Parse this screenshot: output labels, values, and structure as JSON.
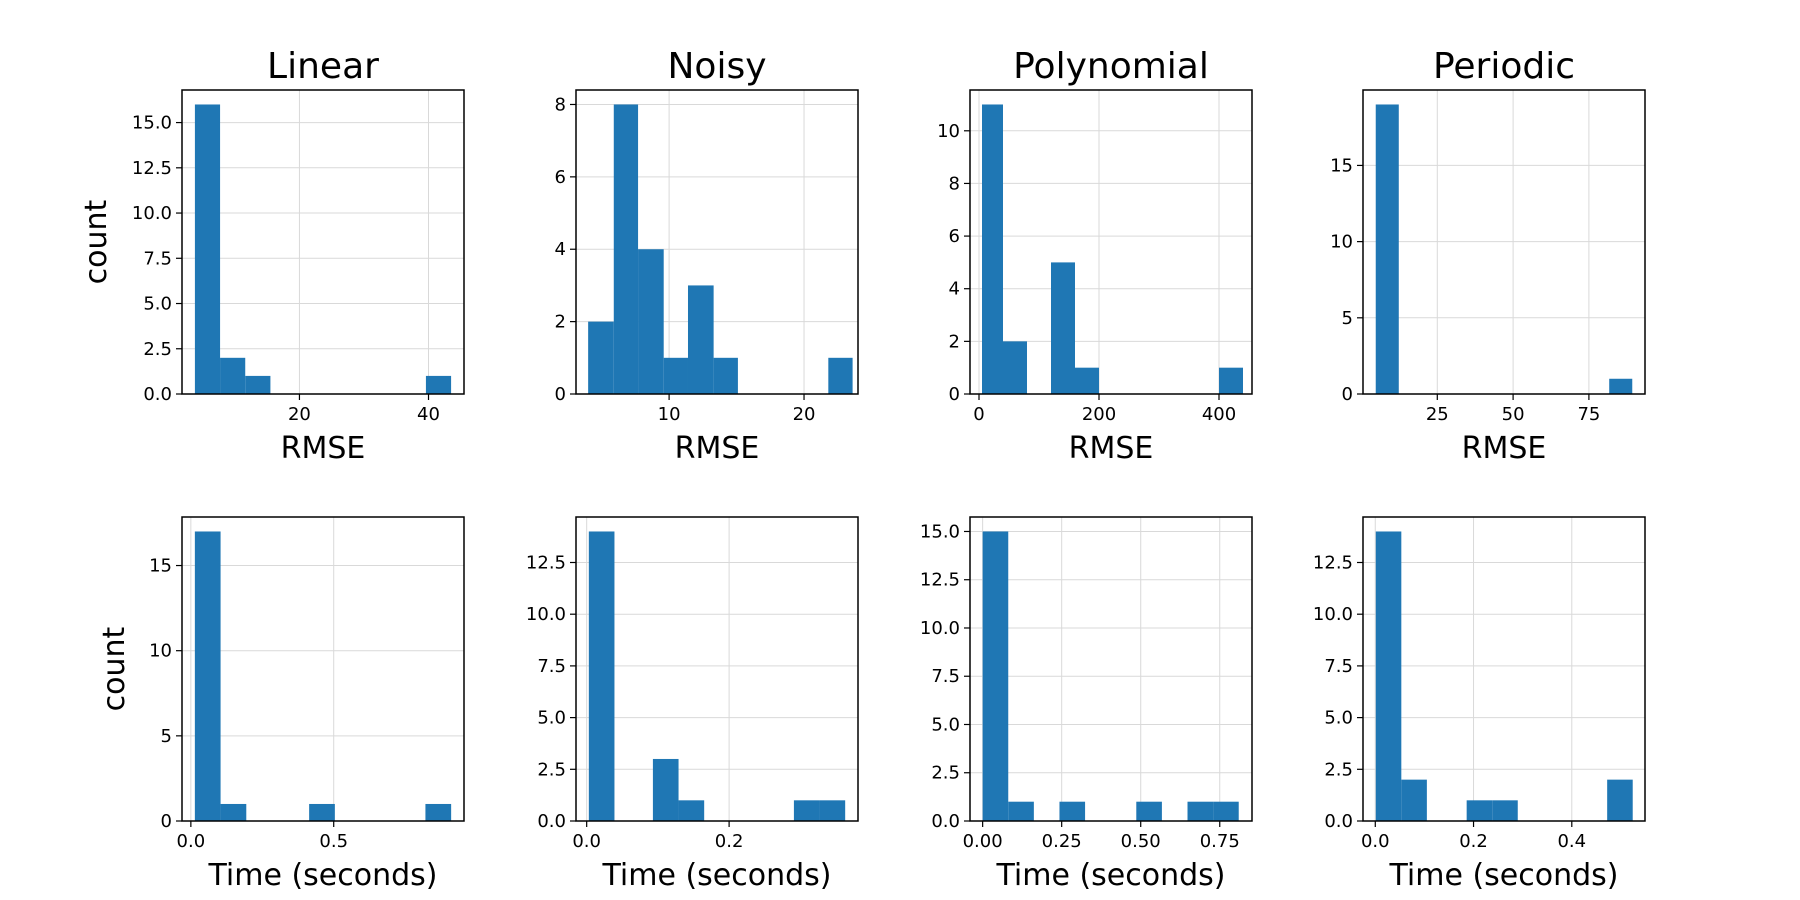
{
  "figure": {
    "ylabel": "count"
  },
  "chart_data": [
    {
      "type": "bar",
      "subtype": "histogram",
      "title": "Linear",
      "xlabel": "RMSE",
      "ylabel": "count",
      "xlim": [
        1.8,
        45.5
      ],
      "ylim": [
        0,
        16.8
      ],
      "grid": true,
      "xticks": [
        {
          "v": 20,
          "label": "20"
        },
        {
          "v": 40,
          "label": "40"
        }
      ],
      "yticks": [
        {
          "v": 0,
          "label": "0.0"
        },
        {
          "v": 2.5,
          "label": "2.5"
        },
        {
          "v": 5,
          "label": "5.0"
        },
        {
          "v": 7.5,
          "label": "7.5"
        },
        {
          "v": 10,
          "label": "10.0"
        },
        {
          "v": 12.5,
          "label": "12.5"
        },
        {
          "v": 15,
          "label": "15.0"
        }
      ],
      "bins": [
        {
          "x0": 3.8,
          "x1": 7.7,
          "count": 16
        },
        {
          "x0": 7.7,
          "x1": 11.6,
          "count": 2
        },
        {
          "x0": 11.6,
          "x1": 15.5,
          "count": 1
        },
        {
          "x0": 39.6,
          "x1": 43.5,
          "count": 1
        }
      ]
    },
    {
      "type": "bar",
      "subtype": "histogram",
      "title": "Noisy",
      "xlabel": "RMSE",
      "ylabel": "",
      "xlim": [
        3.1,
        24.0
      ],
      "ylim": [
        0,
        8.4
      ],
      "grid": true,
      "xticks": [
        {
          "v": 10,
          "label": "10"
        },
        {
          "v": 20,
          "label": "20"
        }
      ],
      "yticks": [
        {
          "v": 0,
          "label": "0"
        },
        {
          "v": 2,
          "label": "2"
        },
        {
          "v": 4,
          "label": "4"
        },
        {
          "v": 6,
          "label": "6"
        },
        {
          "v": 8,
          "label": "8"
        }
      ],
      "bins": [
        {
          "x0": 4.0,
          "x1": 5.9,
          "count": 2
        },
        {
          "x0": 5.9,
          "x1": 7.7,
          "count": 8
        },
        {
          "x0": 7.7,
          "x1": 9.6,
          "count": 4
        },
        {
          "x0": 9.6,
          "x1": 11.4,
          "count": 1
        },
        {
          "x0": 11.4,
          "x1": 13.3,
          "count": 3
        },
        {
          "x0": 13.3,
          "x1": 15.1,
          "count": 1
        },
        {
          "x0": 21.8,
          "x1": 23.6,
          "count": 1
        }
      ]
    },
    {
      "type": "bar",
      "subtype": "histogram",
      "title": "Polynomial",
      "xlabel": "RMSE",
      "ylabel": "",
      "xlim": [
        -15,
        455
      ],
      "ylim": [
        0,
        11.55
      ],
      "grid": true,
      "xticks": [
        {
          "v": 0,
          "label": "0"
        },
        {
          "v": 200,
          "label": "200"
        },
        {
          "v": 400,
          "label": "400"
        }
      ],
      "yticks": [
        {
          "v": 0,
          "label": "0"
        },
        {
          "v": 2,
          "label": "2"
        },
        {
          "v": 4,
          "label": "4"
        },
        {
          "v": 6,
          "label": "6"
        },
        {
          "v": 8,
          "label": "8"
        },
        {
          "v": 10,
          "label": "10"
        }
      ],
      "bins": [
        {
          "x0": 5,
          "x1": 40,
          "count": 11
        },
        {
          "x0": 40,
          "x1": 80,
          "count": 2
        },
        {
          "x0": 120,
          "x1": 160,
          "count": 5
        },
        {
          "x0": 160,
          "x1": 200,
          "count": 1
        },
        {
          "x0": 400,
          "x1": 440,
          "count": 1
        }
      ]
    },
    {
      "type": "bar",
      "subtype": "histogram",
      "title": "Periodic",
      "xlabel": "RMSE",
      "ylabel": "",
      "xlim": [
        0.5,
        93.5
      ],
      "ylim": [
        0,
        19.95
      ],
      "grid": true,
      "xticks": [
        {
          "v": 25,
          "label": "25"
        },
        {
          "v": 50,
          "label": "50"
        },
        {
          "v": 75,
          "label": "75"
        }
      ],
      "yticks": [
        {
          "v": 0,
          "label": "0"
        },
        {
          "v": 5,
          "label": "5"
        },
        {
          "v": 10,
          "label": "10"
        },
        {
          "v": 15,
          "label": "15"
        }
      ],
      "bins": [
        {
          "x0": 4.7,
          "x1": 12.3,
          "count": 19
        },
        {
          "x0": 81.7,
          "x1": 89.3,
          "count": 1
        }
      ]
    },
    {
      "type": "bar",
      "subtype": "histogram",
      "title": "",
      "xlabel": "Time (seconds)",
      "ylabel": "count",
      "xlim": [
        -0.031,
        0.956
      ],
      "ylim": [
        0,
        17.85
      ],
      "grid": true,
      "xticks": [
        {
          "v": 0,
          "label": "0.0"
        },
        {
          "v": 0.5,
          "label": "0.5"
        }
      ],
      "yticks": [
        {
          "v": 0,
          "label": "0"
        },
        {
          "v": 5,
          "label": "5"
        },
        {
          "v": 10,
          "label": "10"
        },
        {
          "v": 15,
          "label": "15"
        }
      ],
      "bins": [
        {
          "x0": 0.014,
          "x1": 0.104,
          "count": 17
        },
        {
          "x0": 0.104,
          "x1": 0.194,
          "count": 1
        },
        {
          "x0": 0.414,
          "x1": 0.504,
          "count": 1
        },
        {
          "x0": 0.821,
          "x1": 0.911,
          "count": 1
        }
      ]
    },
    {
      "type": "bar",
      "subtype": "histogram",
      "title": "",
      "xlabel": "Time (seconds)",
      "ylabel": "",
      "xlim": [
        -0.015,
        0.381
      ],
      "ylim": [
        0,
        14.7
      ],
      "grid": true,
      "xticks": [
        {
          "v": 0,
          "label": "0.0"
        },
        {
          "v": 0.2,
          "label": "0.2"
        }
      ],
      "yticks": [
        {
          "v": 0,
          "label": "0.0"
        },
        {
          "v": 2.5,
          "label": "2.5"
        },
        {
          "v": 5,
          "label": "5.0"
        },
        {
          "v": 7.5,
          "label": "7.5"
        },
        {
          "v": 10,
          "label": "10.0"
        },
        {
          "v": 12.5,
          "label": "12.5"
        }
      ],
      "bins": [
        {
          "x0": 0.003,
          "x1": 0.039,
          "count": 14
        },
        {
          "x0": 0.093,
          "x1": 0.129,
          "count": 3
        },
        {
          "x0": 0.129,
          "x1": 0.165,
          "count": 1
        },
        {
          "x0": 0.291,
          "x1": 0.327,
          "count": 1
        },
        {
          "x0": 0.327,
          "x1": 0.363,
          "count": 1
        }
      ]
    },
    {
      "type": "bar",
      "subtype": "histogram",
      "title": "",
      "xlabel": "Time (seconds)",
      "ylabel": "",
      "xlim": [
        -0.04,
        0.852
      ],
      "ylim": [
        0,
        15.75
      ],
      "grid": true,
      "xticks": [
        {
          "v": 0,
          "label": "0.00"
        },
        {
          "v": 0.25,
          "label": "0.25"
        },
        {
          "v": 0.5,
          "label": "0.50"
        },
        {
          "v": 0.75,
          "label": "0.75"
        }
      ],
      "yticks": [
        {
          "v": 0,
          "label": "0.0"
        },
        {
          "v": 2.5,
          "label": "2.5"
        },
        {
          "v": 5,
          "label": "5.0"
        },
        {
          "v": 7.5,
          "label": "7.5"
        },
        {
          "v": 10,
          "label": "10.0"
        },
        {
          "v": 12.5,
          "label": "12.5"
        },
        {
          "v": 15,
          "label": "15.0"
        }
      ],
      "bins": [
        {
          "x0": 0.0,
          "x1": 0.081,
          "count": 15
        },
        {
          "x0": 0.081,
          "x1": 0.162,
          "count": 1
        },
        {
          "x0": 0.243,
          "x1": 0.324,
          "count": 1
        },
        {
          "x0": 0.486,
          "x1": 0.567,
          "count": 1
        },
        {
          "x0": 0.648,
          "x1": 0.729,
          "count": 1
        },
        {
          "x0": 0.729,
          "x1": 0.81,
          "count": 1
        }
      ]
    },
    {
      "type": "bar",
      "subtype": "histogram",
      "title": "",
      "xlabel": "Time (seconds)",
      "ylabel": "",
      "xlim": [
        -0.025,
        0.549
      ],
      "ylim": [
        0,
        14.7
      ],
      "grid": true,
      "xticks": [
        {
          "v": 0,
          "label": "0.0"
        },
        {
          "v": 0.2,
          "label": "0.2"
        },
        {
          "v": 0.4,
          "label": "0.4"
        }
      ],
      "yticks": [
        {
          "v": 0,
          "label": "0.0"
        },
        {
          "v": 2.5,
          "label": "2.5"
        },
        {
          "v": 5,
          "label": "5.0"
        },
        {
          "v": 7.5,
          "label": "7.5"
        },
        {
          "v": 10,
          "label": "10.0"
        },
        {
          "v": 12.5,
          "label": "12.5"
        }
      ],
      "bins": [
        {
          "x0": 0.001,
          "x1": 0.053,
          "count": 14
        },
        {
          "x0": 0.053,
          "x1": 0.105,
          "count": 2
        },
        {
          "x0": 0.186,
          "x1": 0.238,
          "count": 1
        },
        {
          "x0": 0.238,
          "x1": 0.29,
          "count": 1
        },
        {
          "x0": 0.472,
          "x1": 0.524,
          "count": 2
        }
      ]
    }
  ],
  "colors": {
    "bar": "#1f77b4",
    "grid": "#d9d9d9",
    "axis": "#000000"
  }
}
